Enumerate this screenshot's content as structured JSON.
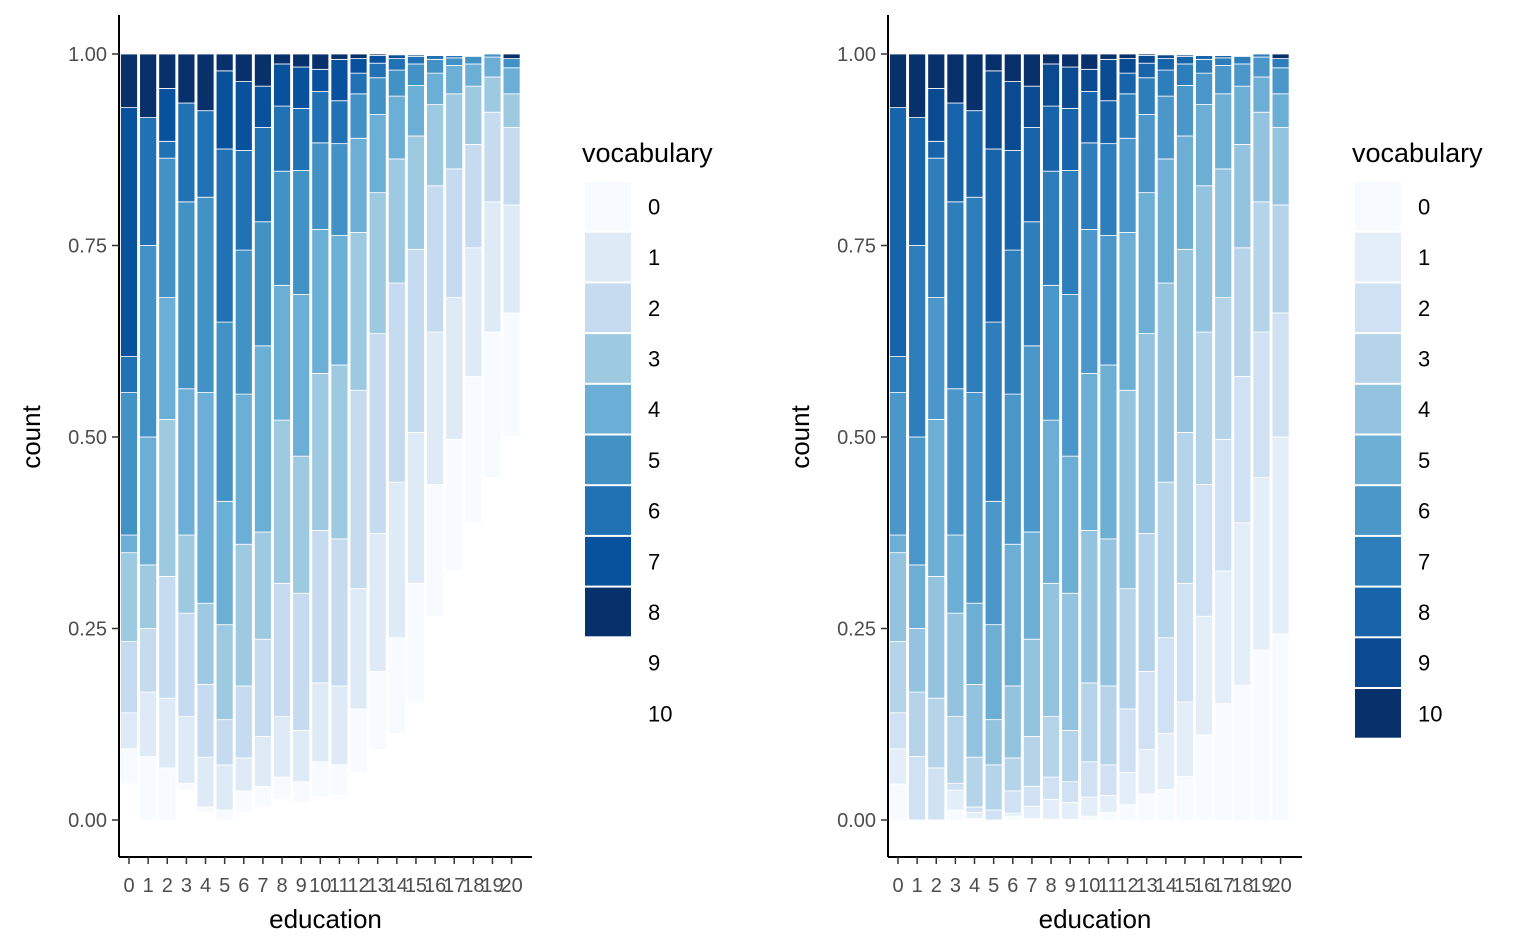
{
  "chart_data": [
    {
      "type": "bar",
      "stacking": "proportion",
      "x": [
        0,
        1,
        2,
        3,
        4,
        5,
        6,
        7,
        8,
        9,
        10,
        11,
        12,
        13,
        14,
        15,
        16,
        17,
        18,
        19,
        20
      ],
      "xlabel": "education",
      "ylabel": "count",
      "ylim": [
        0,
        1
      ],
      "yticks": [
        "0.00",
        "0.25",
        "0.50",
        "0.75",
        "1.00"
      ],
      "legend_title": "vocabulary",
      "legend_position": "right",
      "legend_entries": [
        "0",
        "1",
        "2",
        "3",
        "4",
        "5",
        "6",
        "7",
        "8",
        "9",
        "10"
      ],
      "palette": [
        "#f7fbff",
        "#deebf7",
        "#c6dbef",
        "#9ecae1",
        "#6baed6",
        "#4292c6",
        "#2171b5",
        "#08519c",
        "#08306b",
        "transparent",
        "transparent"
      ],
      "palette_note": "Colors map to vocabulary 0-8; levels 9 and 10 shown without color.",
      "stacks": [
        [
          0.047,
          0.093,
          0.14,
          0.233,
          0.349,
          0.372,
          0.558,
          0.605,
          0.93
        ],
        [
          0.0,
          0.083,
          0.167,
          0.25,
          0.333,
          0.5,
          0.75,
          0.917,
          0.917
        ],
        [
          0.0,
          0.068,
          0.159,
          0.318,
          0.523,
          0.682,
          0.864,
          0.886,
          0.955
        ],
        [
          0.039,
          0.048,
          0.135,
          0.27,
          0.372,
          0.563,
          0.807,
          0.936,
          0.936
        ],
        [
          0.01,
          0.017,
          0.082,
          0.177,
          0.283,
          0.558,
          0.813,
          0.926,
          0.926
        ],
        [
          0.0,
          0.013,
          0.072,
          0.131,
          0.255,
          0.416,
          0.65,
          0.876,
          0.978
        ],
        [
          0.009,
          0.038,
          0.081,
          0.175,
          0.36,
          0.556,
          0.744,
          0.874,
          0.964
        ],
        [
          0.018,
          0.044,
          0.109,
          0.236,
          0.376,
          0.619,
          0.781,
          0.904,
          0.958
        ],
        [
          0.027,
          0.056,
          0.135,
          0.309,
          0.522,
          0.698,
          0.847,
          0.932,
          0.987
        ],
        [
          0.023,
          0.05,
          0.117,
          0.296,
          0.475,
          0.686,
          0.848,
          0.929,
          0.983
        ],
        [
          0.03,
          0.076,
          0.179,
          0.378,
          0.583,
          0.771,
          0.884,
          0.951,
          0.98
        ],
        [
          0.032,
          0.072,
          0.175,
          0.367,
          0.594,
          0.763,
          0.883,
          0.939,
          0.993
        ],
        [
          0.062,
          0.145,
          0.302,
          0.561,
          0.767,
          0.89,
          0.948,
          0.975,
          0.994
        ],
        [
          0.092,
          0.194,
          0.374,
          0.635,
          0.819,
          0.921,
          0.969,
          0.988,
          0.998
        ],
        [
          0.113,
          0.238,
          0.441,
          0.701,
          0.863,
          0.945,
          0.979,
          0.994,
          0.999
        ],
        [
          0.154,
          0.309,
          0.506,
          0.745,
          0.893,
          0.959,
          0.987,
          0.997,
          0.999
        ],
        [
          0.266,
          0.438,
          0.637,
          0.828,
          0.934,
          0.975,
          0.993,
          0.998,
          0.999
        ],
        [
          0.325,
          0.497,
          0.682,
          0.85,
          0.948,
          0.985,
          0.995,
          0.998,
          0.999
        ],
        [
          0.388,
          0.579,
          0.747,
          0.882,
          0.958,
          0.987,
          0.997,
          0.998,
          0.999
        ],
        [
          0.447,
          0.637,
          0.807,
          0.924,
          0.97,
          0.996,
          1.0,
          1.0,
          1.0
        ],
        [
          0.5,
          0.662,
          0.803,
          0.904,
          0.948,
          0.982,
          0.994,
          0.994,
          0.994
        ]
      ]
    },
    {
      "type": "bar",
      "stacking": "proportion",
      "x": [
        0,
        1,
        2,
        3,
        4,
        5,
        6,
        7,
        8,
        9,
        10,
        11,
        12,
        13,
        14,
        15,
        16,
        17,
        18,
        19,
        20
      ],
      "xlabel": "education",
      "ylabel": "count",
      "ylim": [
        0,
        1
      ],
      "yticks": [
        "0.00",
        "0.25",
        "0.50",
        "0.75",
        "1.00"
      ],
      "legend_title": "vocabulary",
      "legend_position": "right",
      "legend_entries": [
        "0",
        "1",
        "2",
        "3",
        "4",
        "5",
        "6",
        "7",
        "8",
        "9",
        "10"
      ],
      "palette": [
        "#f7fbff",
        "#e3eef9",
        "#cfe1f2",
        "#b5d4e9",
        "#93c3df",
        "#6daed5",
        "#4b97c9",
        "#2f7ebc",
        "#1864aa",
        "#0a4a90",
        "#08306b"
      ],
      "stacks": [
        [
          0.0,
          0.047,
          0.093,
          0.14,
          0.233,
          0.349,
          0.372,
          0.558,
          0.605,
          0.93,
          0.93
        ],
        [
          0.0,
          0.0,
          0.0,
          0.083,
          0.167,
          0.25,
          0.333,
          0.5,
          0.75,
          0.917,
          0.917
        ],
        [
          0.0,
          0.0,
          0.0,
          0.068,
          0.159,
          0.318,
          0.523,
          0.682,
          0.864,
          0.886,
          0.955
        ],
        [
          0.0,
          0.013,
          0.039,
          0.048,
          0.135,
          0.27,
          0.372,
          0.563,
          0.807,
          0.936,
          0.936
        ],
        [
          0.0,
          0.002,
          0.01,
          0.017,
          0.082,
          0.177,
          0.283,
          0.558,
          0.813,
          0.926,
          0.926
        ],
        [
          0.0,
          0.0,
          0.0,
          0.013,
          0.072,
          0.131,
          0.255,
          0.416,
          0.65,
          0.876,
          0.978
        ],
        [
          0.0,
          0.005,
          0.009,
          0.038,
          0.081,
          0.175,
          0.36,
          0.556,
          0.744,
          0.874,
          0.964
        ],
        [
          0.0,
          0.002,
          0.018,
          0.044,
          0.109,
          0.236,
          0.376,
          0.619,
          0.781,
          0.904,
          0.958
        ],
        [
          0.0,
          0.001,
          0.027,
          0.056,
          0.135,
          0.309,
          0.522,
          0.698,
          0.847,
          0.932,
          0.987
        ],
        [
          0.0,
          0.001,
          0.023,
          0.05,
          0.117,
          0.296,
          0.475,
          0.686,
          0.848,
          0.929,
          0.983
        ],
        [
          0.0,
          0.005,
          0.03,
          0.076,
          0.179,
          0.378,
          0.583,
          0.771,
          0.884,
          0.951,
          0.98
        ],
        [
          0.0,
          0.01,
          0.032,
          0.072,
          0.175,
          0.367,
          0.594,
          0.763,
          0.883,
          0.939,
          0.993
        ],
        [
          0.0,
          0.02,
          0.062,
          0.145,
          0.302,
          0.561,
          0.767,
          0.89,
          0.948,
          0.975,
          0.994
        ],
        [
          0.0,
          0.034,
          0.092,
          0.194,
          0.374,
          0.635,
          0.819,
          0.921,
          0.969,
          0.988,
          0.998
        ],
        [
          0.0,
          0.04,
          0.113,
          0.238,
          0.441,
          0.701,
          0.863,
          0.945,
          0.979,
          0.994,
          0.999
        ],
        [
          0.0,
          0.057,
          0.154,
          0.309,
          0.506,
          0.745,
          0.893,
          0.959,
          0.987,
          0.997,
          0.999
        ],
        [
          0.0,
          0.111,
          0.266,
          0.438,
          0.637,
          0.828,
          0.934,
          0.975,
          0.993,
          0.998,
          0.999
        ],
        [
          0.0,
          0.152,
          0.325,
          0.497,
          0.682,
          0.85,
          0.948,
          0.985,
          0.995,
          0.998,
          0.999
        ],
        [
          0.0,
          0.176,
          0.388,
          0.579,
          0.747,
          0.882,
          0.958,
          0.987,
          0.997,
          0.998,
          0.999
        ],
        [
          0.0,
          0.222,
          0.447,
          0.637,
          0.807,
          0.924,
          0.97,
          0.996,
          1.0,
          1.0,
          1.0
        ],
        [
          0.0,
          0.243,
          0.5,
          0.662,
          0.803,
          0.904,
          0.948,
          0.982,
          0.994,
          0.994,
          0.994
        ]
      ]
    }
  ]
}
